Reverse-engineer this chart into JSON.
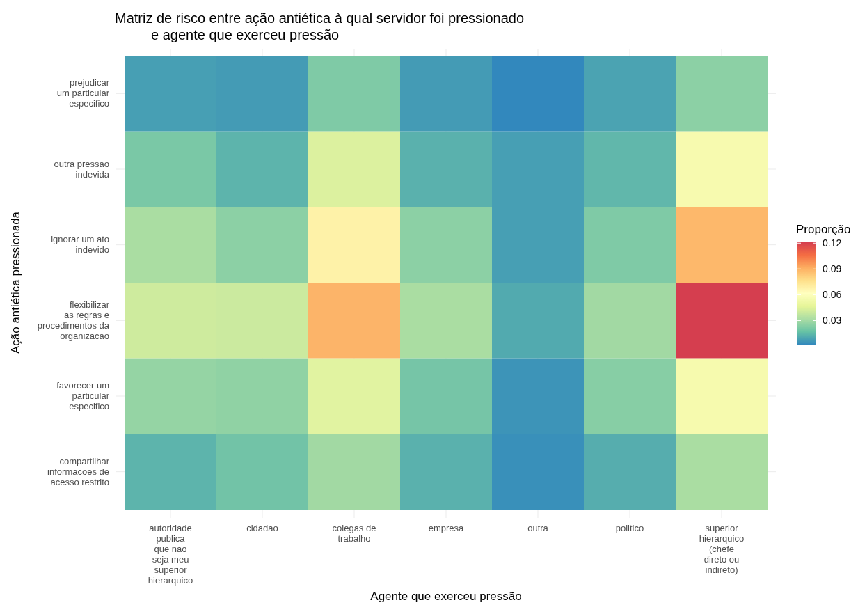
{
  "chart_data": {
    "type": "heatmap",
    "title": "Matriz de risco entre ação antiética à qual servidor foi pressionado\ne agente que exerceu pressão",
    "xlabel": "Agente que exerceu pressão",
    "ylabel": "Ação antiética pressionada",
    "legend_title": "Proporção",
    "categories": [
      "autoridade\npublica\nque nao\nseja meu\nsuperior\nhierarquico",
      "cidadao",
      "colegas de\ntrabalho",
      "empresa",
      "outra",
      "politico",
      "superior\nhierarquico\n(chefe\ndireto ou\nindireto)"
    ],
    "y_categories": [
      "prejudicar\num particular\nespecifico",
      "outra pressao\nindevida",
      "ignorar um ato\nindevido",
      "flexibilizar\nas regras e\nprocedimentos da\norganizacao",
      "favorecer um\nparticular\nespecifico",
      "compartilhar\ninformacoes de\nacesso restrito"
    ],
    "cells": [
      [
        0.008,
        0.007,
        0.022,
        0.007,
        0.002,
        0.009,
        0.025
      ],
      [
        0.021,
        0.014,
        0.045,
        0.013,
        0.008,
        0.015,
        0.058
      ],
      [
        0.032,
        0.025,
        0.067,
        0.025,
        0.008,
        0.022,
        0.088
      ],
      [
        0.041,
        0.04,
        0.089,
        0.032,
        0.011,
        0.03,
        0.121
      ],
      [
        0.027,
        0.026,
        0.047,
        0.02,
        0.005,
        0.024,
        0.057
      ],
      [
        0.014,
        0.019,
        0.03,
        0.013,
        0.004,
        0.012,
        0.032
      ]
    ],
    "clim": [
      0.002,
      0.121
    ],
    "cticks": [
      0.03,
      0.06,
      0.09,
      0.12
    ],
    "grid": true
  }
}
